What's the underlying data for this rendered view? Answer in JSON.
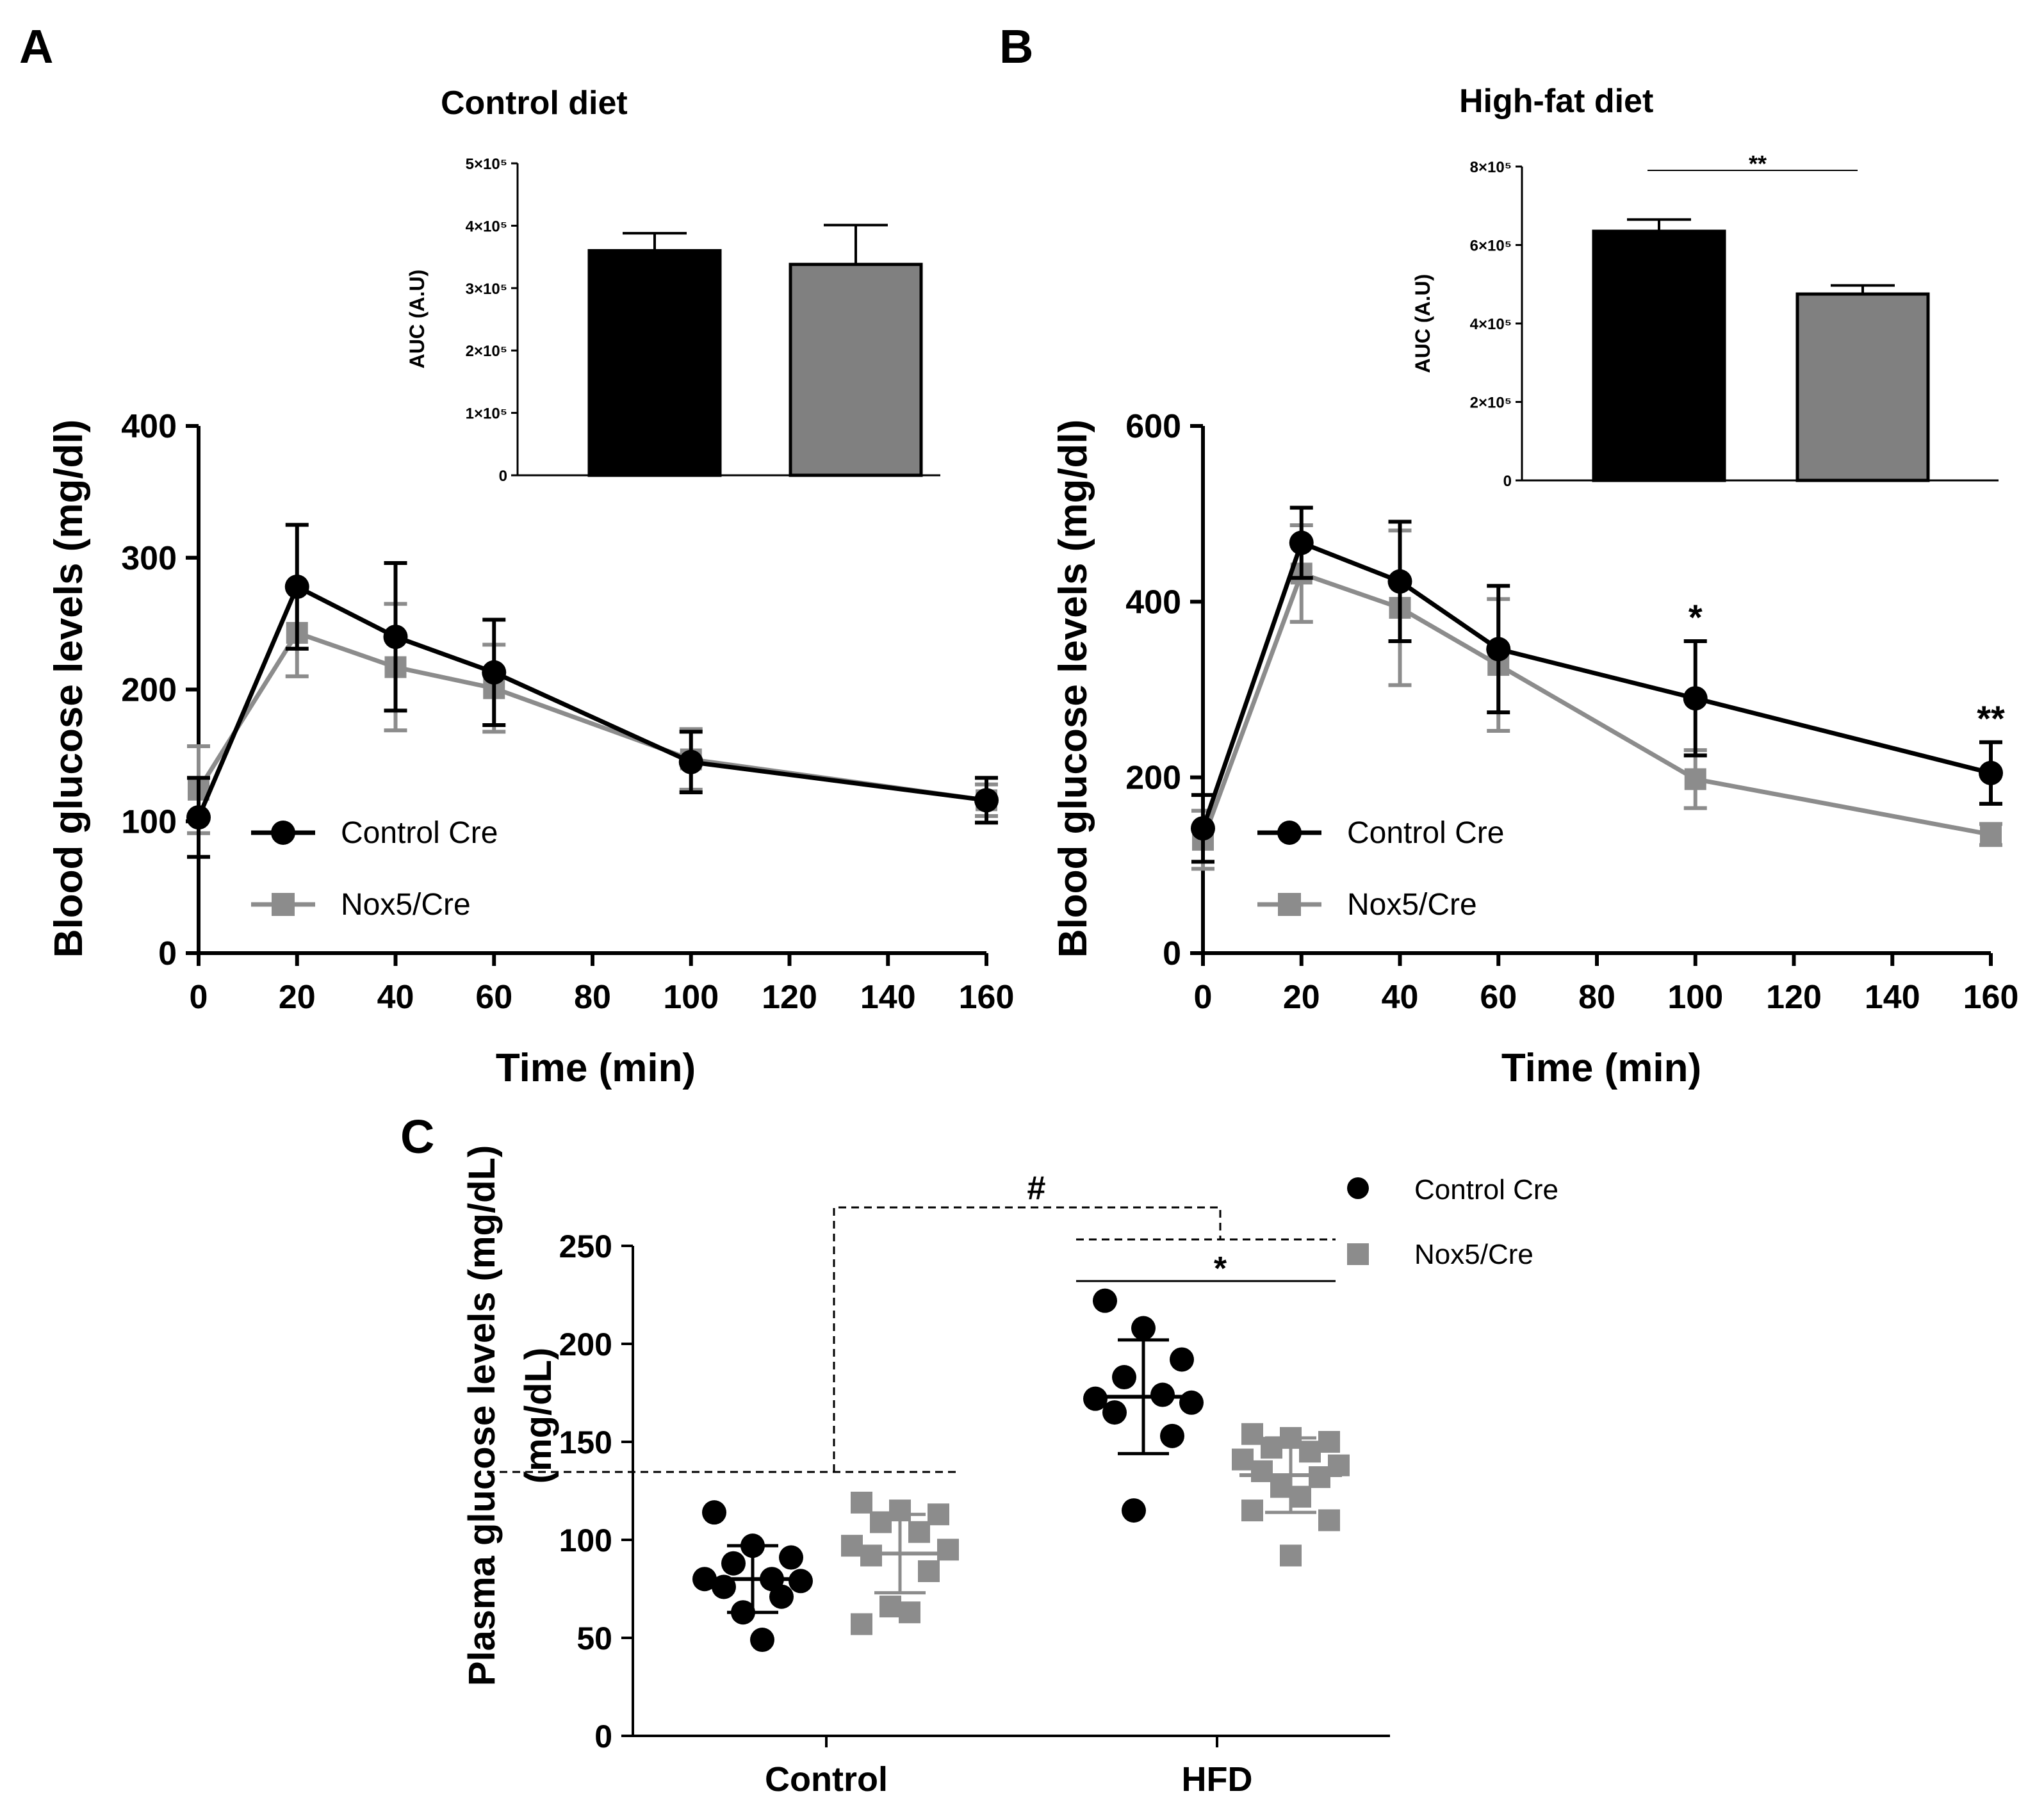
{
  "colors": {
    "control": "#000000",
    "nox5": "#8c8c8c"
  },
  "panels": {
    "A": {
      "letter": "A",
      "legend": [
        "Control Cre",
        "Nox5/Cre"
      ],
      "inset": {
        "title": "Control diet",
        "ylabel": "AUC (A.U)",
        "yticks": [
          0,
          100000,
          200000,
          300000,
          400000,
          500000
        ],
        "ytick_labels": [
          "0",
          "1×10⁵",
          "2×10⁵",
          "3×10⁵",
          "4×10⁵",
          "5×10⁵"
        ]
      }
    },
    "B": {
      "letter": "B",
      "legend": [
        "Control Cre",
        "Nox5/Cre"
      ],
      "inset": {
        "title": "High-fat diet",
        "ylabel": "AUC (A.U)",
        "yticks": [
          0,
          200000,
          400000,
          600000,
          800000
        ],
        "ytick_labels": [
          "0",
          "2×10⁵",
          "4×10⁵",
          "6×10⁵",
          "8×10⁵"
        ],
        "significance": "**"
      }
    },
    "C": {
      "letter": "C",
      "legend": [
        "Control Cre",
        "Nox5/Cre"
      ],
      "hash": "#",
      "star": "*"
    }
  },
  "chart_data": [
    {
      "id": "A-main",
      "type": "line",
      "title": "",
      "xlabel": "Time (min)",
      "ylabel": "Blood glucose levels (mg/dl)",
      "xlim": [
        0,
        160
      ],
      "ylim": [
        0,
        400
      ],
      "xticks": [
        0,
        20,
        40,
        60,
        80,
        100,
        120,
        140,
        160
      ],
      "yticks": [
        0,
        100,
        200,
        300,
        400
      ],
      "x": [
        0,
        20,
        40,
        60,
        100,
        160
      ],
      "series": [
        {
          "name": "Control Cre",
          "values": [
            103,
            278,
            240,
            213,
            145,
            116
          ],
          "err": [
            30,
            47,
            56,
            40,
            23,
            17
          ]
        },
        {
          "name": "Nox5/Cre",
          "values": [
            124,
            243,
            217,
            201,
            147,
            116
          ],
          "err": [
            33,
            33,
            48,
            33,
            23,
            12
          ]
        }
      ],
      "annotations": []
    },
    {
      "id": "A-inset",
      "type": "bar",
      "title": "Control diet",
      "ylabel": "AUC (A.U)",
      "ylim": [
        0,
        500000
      ],
      "categories": [
        "Control Cre",
        "Nox5/Cre"
      ],
      "values": [
        360000,
        338000
      ],
      "err": [
        28000,
        63000
      ]
    },
    {
      "id": "B-main",
      "type": "line",
      "title": "",
      "xlabel": "Time (min)",
      "ylabel": "Blood glucose levels (mg/dl)",
      "xlim": [
        0,
        160
      ],
      "ylim": [
        0,
        600
      ],
      "xticks": [
        0,
        20,
        40,
        60,
        80,
        100,
        120,
        140,
        160
      ],
      "yticks": [
        0,
        200,
        400,
        600
      ],
      "x": [
        0,
        20,
        40,
        60,
        100,
        160
      ],
      "series": [
        {
          "name": "Control Cre",
          "values": [
            142,
            467,
            423,
            346,
            290,
            205
          ],
          "err": [
            38,
            40,
            68,
            72,
            65,
            35
          ]
        },
        {
          "name": "Nox5/Cre",
          "values": [
            129,
            432,
            393,
            328,
            198,
            135
          ],
          "err": [
            33,
            55,
            88,
            75,
            33,
            12
          ]
        }
      ],
      "annotations": [
        {
          "x": 100,
          "text": "*"
        },
        {
          "x": 160,
          "text": "**"
        }
      ]
    },
    {
      "id": "B-inset",
      "type": "bar",
      "title": "High-fat diet",
      "ylabel": "AUC (A.U)",
      "ylim": [
        0,
        800000
      ],
      "categories": [
        "Control Cre",
        "Nox5/Cre"
      ],
      "values": [
        635000,
        475000
      ],
      "err": [
        30000,
        22000
      ]
    },
    {
      "id": "C",
      "type": "scatter",
      "title": "",
      "xlabel": "",
      "ylabel": "Plasma glucose levels (mg/dL)",
      "ylim": [
        0,
        250
      ],
      "yticks": [
        0,
        50,
        100,
        150,
        200,
        250
      ],
      "categories": [
        "Control",
        "HFD"
      ],
      "series": [
        {
          "name": "Control Cre",
          "group": "Control",
          "mean": 80,
          "sd": 17,
          "points": [
            114,
            97,
            91,
            88,
            80,
            80,
            79,
            76,
            71,
            63,
            49
          ]
        },
        {
          "name": "Nox5/Cre",
          "group": "Control",
          "mean": 93,
          "sd": 20,
          "points": [
            119,
            115,
            113,
            109,
            104,
            97,
            95,
            92,
            84,
            66,
            63,
            57
          ]
        },
        {
          "name": "Control Cre",
          "group": "HFD",
          "mean": 173,
          "sd": 29,
          "points": [
            222,
            208,
            192,
            183,
            174,
            172,
            170,
            165,
            153,
            115
          ]
        },
        {
          "name": "Nox5/Cre",
          "group": "HFD",
          "mean": 133,
          "sd": 19,
          "points": [
            154,
            152,
            150,
            147,
            145,
            141,
            138,
            135,
            132,
            127,
            122,
            115,
            110,
            92
          ]
        }
      ]
    }
  ]
}
